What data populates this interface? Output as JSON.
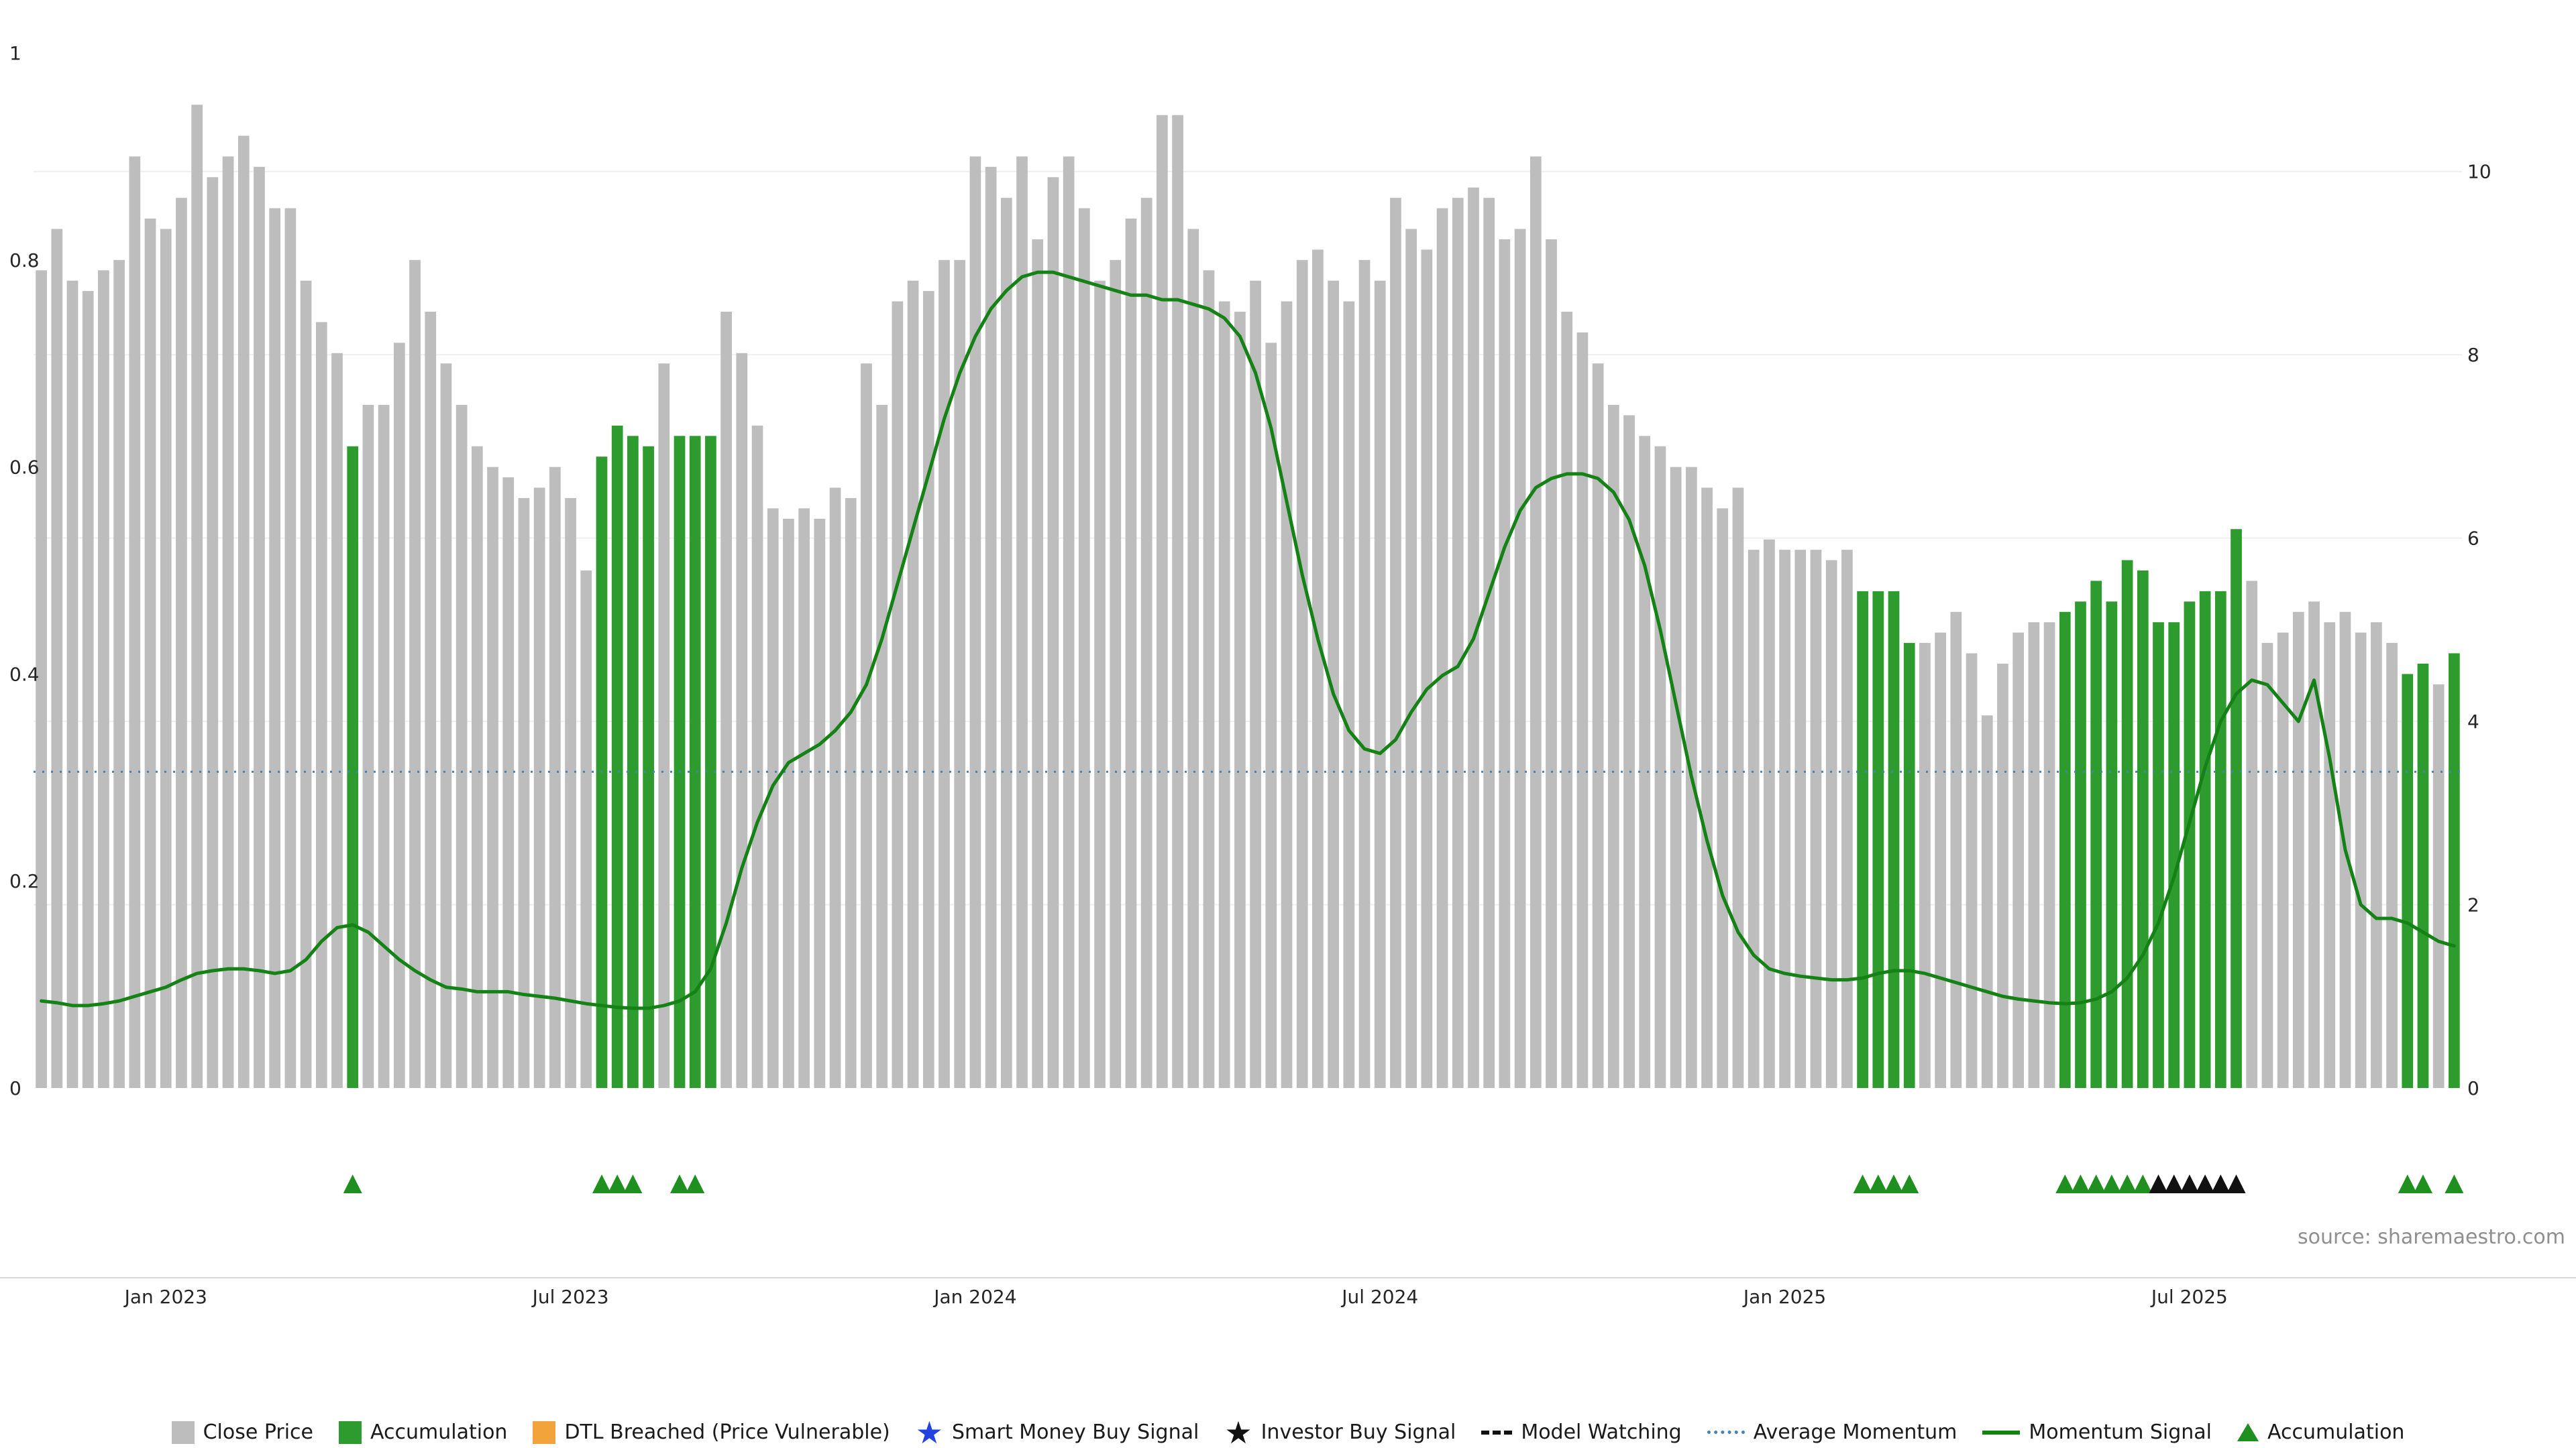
{
  "chart_data": {
    "type": "bar+line",
    "title": "",
    "source": "source: sharemaestro.com",
    "left_axis": {
      "ticks": [
        1,
        0.8,
        0.6,
        0.4,
        0.2,
        0
      ],
      "labels": [
        "1",
        "0.8",
        "0.6",
        "0.4",
        "0.2",
        "0"
      ],
      "range": [
        0,
        1
      ]
    },
    "right_axis": {
      "ticks": [
        10,
        8,
        6,
        4,
        2,
        0
      ],
      "labels": [
        "10",
        "8",
        "6",
        "4",
        "2",
        "0"
      ],
      "range": [
        0,
        10
      ]
    },
    "x_ticks": [
      {
        "label": "Jan 2023",
        "index": 8
      },
      {
        "label": "Jul 2023",
        "index": 34
      },
      {
        "label": "Jan 2024",
        "index": 60
      },
      {
        "label": "Jul 2024",
        "index": 86
      },
      {
        "label": "Jan 2025",
        "index": 112
      },
      {
        "label": "Jul 2025",
        "index": 138
      }
    ],
    "bars": {
      "series_name": "Close Price",
      "values": [
        0.79,
        0.83,
        0.78,
        0.77,
        0.79,
        0.8,
        0.9,
        0.84,
        0.83,
        0.86,
        0.95,
        0.88,
        0.9,
        0.92,
        0.89,
        0.85,
        0.85,
        0.78,
        0.74,
        0.71,
        0.62,
        0.66,
        0.66,
        0.72,
        0.8,
        0.75,
        0.7,
        0.66,
        0.62,
        0.6,
        0.59,
        0.57,
        0.58,
        0.6,
        0.57,
        0.5,
        0.61,
        0.64,
        0.63,
        0.62,
        0.7,
        0.63,
        0.63,
        0.63,
        0.75,
        0.71,
        0.64,
        0.56,
        0.55,
        0.56,
        0.55,
        0.58,
        0.57,
        0.7,
        0.66,
        0.76,
        0.78,
        0.77,
        0.8,
        0.8,
        0.9,
        0.89,
        0.86,
        0.9,
        0.82,
        0.88,
        0.9,
        0.85,
        0.78,
        0.8,
        0.84,
        0.86,
        0.94,
        0.94,
        0.83,
        0.79,
        0.76,
        0.75,
        0.78,
        0.72,
        0.76,
        0.8,
        0.81,
        0.78,
        0.76,
        0.8,
        0.78,
        0.86,
        0.83,
        0.81,
        0.85,
        0.86,
        0.87,
        0.86,
        0.82,
        0.83,
        0.9,
        0.82,
        0.75,
        0.73,
        0.7,
        0.66,
        0.65,
        0.63,
        0.62,
        0.6,
        0.6,
        0.58,
        0.56,
        0.58,
        0.52,
        0.53,
        0.52,
        0.52,
        0.52,
        0.51,
        0.52,
        0.48,
        0.48,
        0.48,
        0.43,
        0.43,
        0.44,
        0.46,
        0.42,
        0.36,
        0.41,
        0.44,
        0.45,
        0.45,
        0.46,
        0.47,
        0.49,
        0.47,
        0.51,
        0.5,
        0.45,
        0.45,
        0.47,
        0.48,
        0.48,
        0.54,
        0.49,
        0.43,
        0.44,
        0.46,
        0.47,
        0.45,
        0.46,
        0.44,
        0.45,
        0.43,
        0.4,
        0.41,
        0.39,
        0.42
      ],
      "accumulation_indices": [
        20,
        36,
        37,
        38,
        39,
        41,
        42,
        43,
        117,
        118,
        119,
        120,
        130,
        131,
        132,
        133,
        134,
        135,
        136,
        137,
        138,
        139,
        140,
        141,
        152,
        153,
        155
      ]
    },
    "momentum": {
      "series_name": "Momentum Signal",
      "values": [
        0.95,
        0.93,
        0.9,
        0.9,
        0.92,
        0.95,
        1.0,
        1.05,
        1.1,
        1.18,
        1.25,
        1.28,
        1.3,
        1.3,
        1.28,
        1.25,
        1.28,
        1.4,
        1.6,
        1.75,
        1.78,
        1.7,
        1.55,
        1.4,
        1.28,
        1.18,
        1.1,
        1.08,
        1.05,
        1.05,
        1.05,
        1.02,
        1.0,
        0.98,
        0.95,
        0.92,
        0.9,
        0.88,
        0.87,
        0.87,
        0.9,
        0.95,
        1.05,
        1.3,
        1.8,
        2.4,
        2.9,
        3.3,
        3.55,
        3.65,
        3.75,
        3.9,
        4.1,
        4.4,
        4.9,
        5.5,
        6.1,
        6.7,
        7.3,
        7.8,
        8.2,
        8.5,
        8.7,
        8.85,
        8.9,
        8.9,
        8.85,
        8.8,
        8.75,
        8.7,
        8.65,
        8.65,
        8.6,
        8.6,
        8.55,
        8.5,
        8.4,
        8.2,
        7.8,
        7.2,
        6.4,
        5.6,
        4.9,
        4.3,
        3.9,
        3.7,
        3.65,
        3.8,
        4.1,
        4.35,
        4.5,
        4.6,
        4.9,
        5.4,
        5.9,
        6.3,
        6.55,
        6.65,
        6.7,
        6.7,
        6.65,
        6.5,
        6.2,
        5.7,
        5.0,
        4.2,
        3.4,
        2.7,
        2.1,
        1.7,
        1.45,
        1.3,
        1.25,
        1.22,
        1.2,
        1.18,
        1.18,
        1.2,
        1.25,
        1.28,
        1.28,
        1.25,
        1.2,
        1.15,
        1.1,
        1.05,
        1.0,
        0.97,
        0.95,
        0.93,
        0.92,
        0.93,
        0.97,
        1.05,
        1.2,
        1.45,
        1.8,
        2.3,
        2.9,
        3.5,
        4.0,
        4.3,
        4.45,
        4.4,
        4.2,
        4.0,
        4.45,
        3.6,
        2.6,
        2.0,
        1.85,
        1.85,
        1.8,
        1.7,
        1.6,
        1.55
      ]
    },
    "average_momentum": 3.45,
    "markers": {
      "accumulation_indices": [
        20,
        36,
        37,
        38,
        41,
        42,
        117,
        118,
        119,
        120,
        130,
        131,
        132,
        133,
        134,
        135,
        152,
        153,
        155
      ],
      "investor_buy_indices": [
        136,
        137,
        138,
        139,
        140,
        141
      ]
    },
    "colors": {
      "bar_gray": "#bdbdbd",
      "bar_green": "#2e9b2e",
      "momentum_line": "#148214",
      "average_momentum": "#4682b4",
      "marker_green": "#1f8f1f",
      "marker_black": "#111111",
      "legend_orange": "#f2a33c",
      "star_blue": "#2442e0",
      "grid": "#efefef",
      "axis_line": "#d8d8d8",
      "tick_text": "#262626"
    }
  },
  "legend": {
    "items": [
      {
        "label": "Close Price"
      },
      {
        "label": "Accumulation"
      },
      {
        "label": "DTL Breached (Price Vulnerable)"
      },
      {
        "label": "Smart Money Buy Signal"
      },
      {
        "label": "Investor Buy Signal"
      },
      {
        "label": "Model Watching"
      },
      {
        "label": "Average Momentum"
      },
      {
        "label": "Momentum Signal"
      },
      {
        "label": "Accumulation"
      }
    ]
  }
}
